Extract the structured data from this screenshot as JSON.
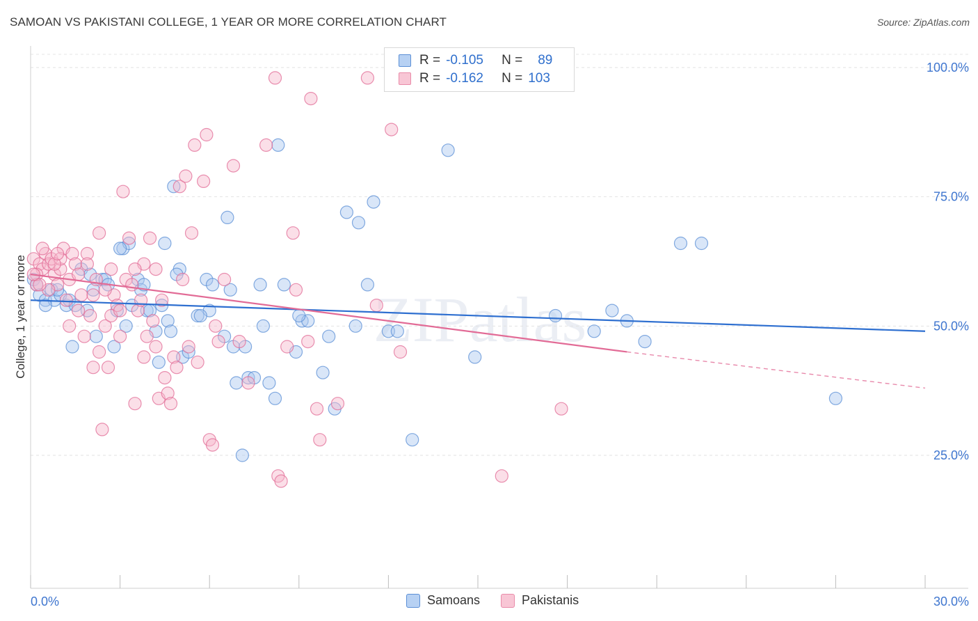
{
  "header": {
    "title": "SAMOAN VS PAKISTANI COLLEGE, 1 YEAR OR MORE CORRELATION CHART",
    "source": "Source: ZipAtlas.com"
  },
  "legend": {
    "rows": [
      {
        "r_label": "R =",
        "r_value": "-0.105",
        "n_label": "N =",
        "n_value": "89",
        "fill": "#aac8f0",
        "stroke": "#5b8fd6"
      },
      {
        "r_label": "R =",
        "r_value": "-0.162",
        "n_label": "N =",
        "n_value": "103",
        "fill": "#f6b8cc",
        "stroke": "#e98aa8"
      }
    ]
  },
  "bottom_legend": [
    {
      "label": "Samoans",
      "fill": "#b7d1f3",
      "stroke": "#5b8fd6"
    },
    {
      "label": "Pakistanis",
      "fill": "#f8c6d5",
      "stroke": "#e98aa8"
    }
  ],
  "watermark": "ZIPatlas",
  "chart_data": {
    "type": "scatter",
    "title": "SAMOAN VS PAKISTANI COLLEGE, 1 YEAR OR MORE CORRELATION CHART",
    "xlabel": "",
    "ylabel": "College, 1 year or more",
    "xlim": [
      0,
      30
    ],
    "ylim": [
      0,
      105
    ],
    "x_tick_labels": [
      "0.0%",
      "30.0%"
    ],
    "y_ticks": [
      25,
      50,
      75,
      100
    ],
    "y_tick_labels": [
      "25.0%",
      "50.0%",
      "75.0%",
      "100.0%"
    ],
    "grid": true,
    "legend_position": "top-center",
    "series": [
      {
        "name": "Samoans",
        "color": "#5b8fd6",
        "fill": "#aac8f0",
        "trend": {
          "x": [
            0,
            30
          ],
          "y": [
            55,
            49
          ]
        },
        "points": [
          [
            0.1,
            59
          ],
          [
            0.2,
            58
          ],
          [
            0.3,
            56
          ],
          [
            0.5,
            55
          ],
          [
            0.7,
            57
          ],
          [
            0.8,
            55
          ],
          [
            1.0,
            56
          ],
          [
            1.2,
            54
          ],
          [
            1.3,
            55
          ],
          [
            1.5,
            54
          ],
          [
            1.7,
            61
          ],
          [
            1.9,
            53
          ],
          [
            2.1,
            57
          ],
          [
            2.2,
            48
          ],
          [
            2.4,
            59
          ],
          [
            2.5,
            59
          ],
          [
            2.6,
            58
          ],
          [
            2.8,
            46
          ],
          [
            2.9,
            53
          ],
          [
            3.1,
            65
          ],
          [
            3.2,
            50
          ],
          [
            3.3,
            66
          ],
          [
            3.4,
            54
          ],
          [
            3.6,
            59
          ],
          [
            3.7,
            57
          ],
          [
            3.8,
            58
          ],
          [
            3.9,
            53
          ],
          [
            4.0,
            53
          ],
          [
            4.2,
            49
          ],
          [
            4.3,
            43
          ],
          [
            4.4,
            54
          ],
          [
            4.5,
            66
          ],
          [
            4.6,
            51
          ],
          [
            4.7,
            49
          ],
          [
            4.8,
            77
          ],
          [
            5.0,
            61
          ],
          [
            5.1,
            44
          ],
          [
            5.3,
            45
          ],
          [
            5.6,
            52
          ],
          [
            5.9,
            59
          ],
          [
            6.0,
            53
          ],
          [
            6.1,
            58
          ],
          [
            6.5,
            48
          ],
          [
            6.6,
            71
          ],
          [
            6.8,
            46
          ],
          [
            6.9,
            39
          ],
          [
            7.1,
            25
          ],
          [
            7.3,
            40
          ],
          [
            7.5,
            40
          ],
          [
            7.7,
            58
          ],
          [
            7.8,
            50
          ],
          [
            8.0,
            39
          ],
          [
            8.2,
            36
          ],
          [
            8.3,
            85
          ],
          [
            8.5,
            58
          ],
          [
            8.9,
            45
          ],
          [
            9.1,
            51
          ],
          [
            9.3,
            51
          ],
          [
            9.8,
            41
          ],
          [
            10.0,
            48
          ],
          [
            10.2,
            34
          ],
          [
            10.6,
            72
          ],
          [
            10.9,
            50
          ],
          [
            11.0,
            70
          ],
          [
            11.3,
            58
          ],
          [
            11.5,
            74
          ],
          [
            12.0,
            49
          ],
          [
            12.3,
            49
          ],
          [
            12.8,
            28
          ],
          [
            14.0,
            84
          ],
          [
            14.9,
            44
          ],
          [
            17.6,
            52
          ],
          [
            18.9,
            49
          ],
          [
            19.5,
            53
          ],
          [
            20.0,
            51
          ],
          [
            20.6,
            47
          ],
          [
            21.8,
            66
          ],
          [
            22.5,
            66
          ],
          [
            27.0,
            36
          ],
          [
            0.5,
            54
          ],
          [
            1.4,
            46
          ],
          [
            2.0,
            60
          ],
          [
            3.0,
            65
          ],
          [
            5.7,
            52
          ],
          [
            6.7,
            57
          ],
          [
            0.9,
            57
          ],
          [
            4.9,
            60
          ],
          [
            7.2,
            46
          ],
          [
            9.0,
            52
          ]
        ]
      },
      {
        "name": "Pakistanis",
        "color": "#e26b96",
        "fill": "#f6b8cc",
        "trend": {
          "x": [
            0,
            20
          ],
          "y": [
            60,
            45
          ]
        },
        "trend_dashed": {
          "x": [
            20,
            30
          ],
          "y": [
            45,
            38
          ]
        },
        "points": [
          [
            0.1,
            63
          ],
          [
            0.2,
            58
          ],
          [
            0.3,
            62
          ],
          [
            0.4,
            61
          ],
          [
            0.5,
            64
          ],
          [
            0.6,
            62
          ],
          [
            0.7,
            63
          ],
          [
            0.8,
            60
          ],
          [
            0.9,
            58
          ],
          [
            1.0,
            61
          ],
          [
            1.1,
            65
          ],
          [
            1.2,
            55
          ],
          [
            1.3,
            59
          ],
          [
            1.4,
            64
          ],
          [
            1.5,
            62
          ],
          [
            1.6,
            60
          ],
          [
            1.7,
            56
          ],
          [
            1.8,
            48
          ],
          [
            1.9,
            64
          ],
          [
            2.0,
            52
          ],
          [
            2.1,
            56
          ],
          [
            2.2,
            59
          ],
          [
            2.3,
            68
          ],
          [
            2.4,
            30
          ],
          [
            2.5,
            50
          ],
          [
            2.6,
            42
          ],
          [
            2.7,
            61
          ],
          [
            2.8,
            56
          ],
          [
            2.9,
            54
          ],
          [
            3.0,
            48
          ],
          [
            3.1,
            76
          ],
          [
            3.2,
            59
          ],
          [
            3.3,
            67
          ],
          [
            3.4,
            58
          ],
          [
            3.5,
            35
          ],
          [
            3.6,
            53
          ],
          [
            3.7,
            55
          ],
          [
            3.8,
            62
          ],
          [
            3.9,
            48
          ],
          [
            4.0,
            67
          ],
          [
            4.1,
            51
          ],
          [
            4.2,
            61
          ],
          [
            4.3,
            36
          ],
          [
            4.4,
            55
          ],
          [
            4.5,
            40
          ],
          [
            4.6,
            37
          ],
          [
            4.7,
            35
          ],
          [
            4.8,
            44
          ],
          [
            4.9,
            42
          ],
          [
            5.0,
            77
          ],
          [
            5.1,
            59
          ],
          [
            5.2,
            79
          ],
          [
            5.3,
            46
          ],
          [
            5.4,
            68
          ],
          [
            5.5,
            85
          ],
          [
            5.6,
            43
          ],
          [
            5.8,
            78
          ],
          [
            5.9,
            87
          ],
          [
            6.0,
            28
          ],
          [
            6.1,
            27
          ],
          [
            6.3,
            47
          ],
          [
            6.5,
            59
          ],
          [
            6.8,
            81
          ],
          [
            7.0,
            47
          ],
          [
            7.3,
            39
          ],
          [
            7.9,
            85
          ],
          [
            8.2,
            98
          ],
          [
            8.3,
            21
          ],
          [
            8.4,
            20
          ],
          [
            8.6,
            46
          ],
          [
            8.8,
            68
          ],
          [
            8.9,
            57
          ],
          [
            9.3,
            47
          ],
          [
            9.4,
            94
          ],
          [
            9.6,
            34
          ],
          [
            9.7,
            28
          ],
          [
            10.3,
            35
          ],
          [
            11.3,
            98
          ],
          [
            11.6,
            54
          ],
          [
            12.1,
            88
          ],
          [
            12.4,
            45
          ],
          [
            15.8,
            21
          ],
          [
            17.8,
            34
          ],
          [
            0.2,
            60
          ],
          [
            0.6,
            57
          ],
          [
            1.3,
            50
          ],
          [
            2.7,
            52
          ],
          [
            3.5,
            61
          ],
          [
            4.2,
            46
          ],
          [
            0.4,
            65
          ],
          [
            1.0,
            63
          ],
          [
            1.6,
            53
          ],
          [
            2.3,
            45
          ],
          [
            3.0,
            53
          ],
          [
            0.8,
            62
          ],
          [
            0.3,
            58
          ],
          [
            1.9,
            62
          ],
          [
            2.5,
            57
          ],
          [
            3.8,
            44
          ],
          [
            6.2,
            50
          ],
          [
            0.1,
            60
          ],
          [
            0.9,
            64
          ],
          [
            2.1,
            42
          ]
        ]
      }
    ]
  }
}
